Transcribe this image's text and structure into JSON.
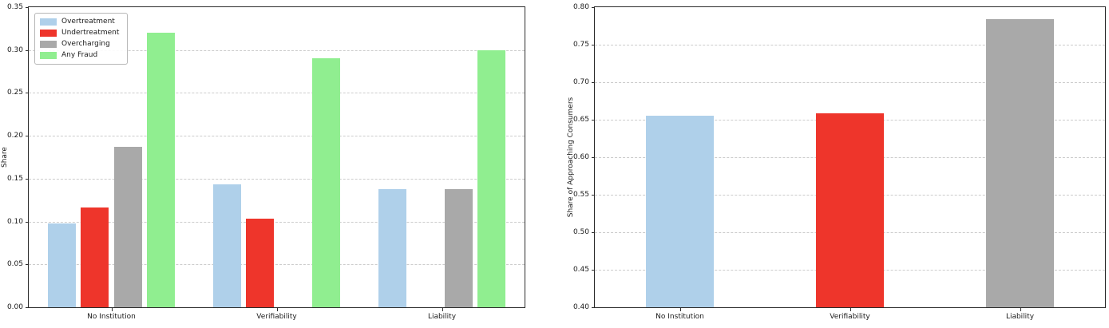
{
  "chart_data": [
    {
      "type": "bar",
      "title": "",
      "xlabel": "",
      "ylabel": "Share",
      "ylim": [
        0.0,
        0.35
      ],
      "yticks": [
        0.0,
        0.05,
        0.1,
        0.15,
        0.2,
        0.25,
        0.3,
        0.35
      ],
      "categories": [
        "No Institution",
        "Verifiability",
        "Liability"
      ],
      "series": [
        {
          "name": "Overtreatment",
          "color": "#afd0ea",
          "values": [
            0.098,
            0.143,
            0.138
          ]
        },
        {
          "name": "Undertreatment",
          "color": "#ee352b",
          "values": [
            0.116,
            0.103,
            0.0
          ]
        },
        {
          "name": "Overcharging",
          "color": "#a9a9a9",
          "values": [
            0.187,
            0.0,
            0.138
          ]
        },
        {
          "name": "Any Fraud",
          "color": "#90ee90",
          "values": [
            0.32,
            0.29,
            0.3
          ]
        }
      ],
      "legend": {
        "show": true,
        "position": "upper-left",
        "labels": [
          "Overtreatment",
          "Undertreatment",
          "Overcharging",
          "Any Fraud"
        ]
      },
      "grid": {
        "axis": "y",
        "style": "dashed"
      }
    },
    {
      "type": "bar",
      "title": "",
      "xlabel": "",
      "ylabel": "Share of Approaching Consumers",
      "ylim": [
        0.4,
        0.8
      ],
      "yticks": [
        0.4,
        0.45,
        0.5,
        0.55,
        0.6,
        0.65,
        0.7,
        0.75,
        0.8
      ],
      "categories": [
        "No Institution",
        "Verifiability",
        "Liability"
      ],
      "series": [
        {
          "name": "",
          "colors": [
            "#afd0ea",
            "#ee352b",
            "#a9a9a9"
          ],
          "values": [
            0.655,
            0.658,
            0.784
          ]
        }
      ],
      "legend": {
        "show": false
      },
      "grid": {
        "axis": "y",
        "style": "dashed"
      }
    }
  ]
}
